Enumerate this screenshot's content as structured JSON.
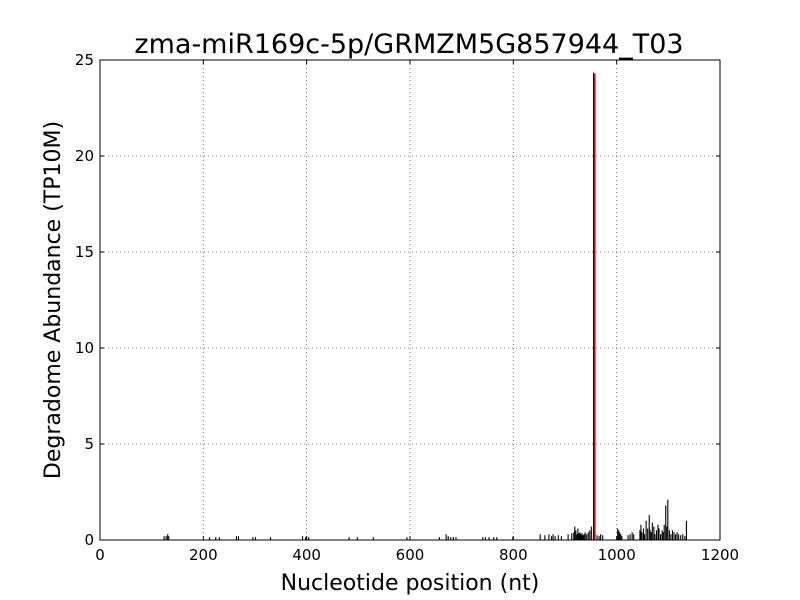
{
  "chart_data": {
    "type": "bar",
    "title": "zma-miR169c-5p/GRMZM5G857944_T03",
    "xlabel": "Nucleotide position (nt)",
    "ylabel": "Degradome Abundance (TP10M)",
    "xlim": [
      0,
      1200
    ],
    "ylim": [
      0,
      25
    ],
    "x_ticks": [
      0,
      200,
      400,
      600,
      800,
      1000,
      1200
    ],
    "y_ticks": [
      0,
      5,
      10,
      15,
      20,
      25
    ],
    "grid": true,
    "grid_style": "dotted",
    "colors": {
      "background_series": "#000000",
      "highlight": "#cc0000",
      "grid": "#555555"
    },
    "series": [
      {
        "role": "background",
        "x": [
          124,
          128,
          131,
          133,
          212,
          224,
          231,
          264,
          268,
          296,
          301,
          330,
          392,
          398,
          404,
          482,
          498,
          529,
          594,
          657,
          670,
          674,
          679,
          684,
          689,
          741,
          746,
          753,
          762,
          768,
          799,
          852,
          861,
          869,
          874,
          877,
          881,
          887,
          893,
          906,
          913,
          917,
          919,
          921,
          923,
          925,
          927,
          929,
          931,
          933,
          935,
          937,
          939,
          942,
          945,
          948,
          951,
          955,
          958,
          962,
          966,
          969,
          973,
          1002,
          1004,
          1006,
          1008,
          1010,
          1022,
          1026,
          1030,
          1033,
          1045,
          1047,
          1049,
          1052,
          1054,
          1057,
          1060,
          1063,
          1065,
          1067,
          1069,
          1072,
          1074,
          1077,
          1080,
          1082,
          1085,
          1088,
          1090,
          1092,
          1095,
          1097,
          1099,
          1102,
          1105,
          1108,
          1111,
          1114,
          1117,
          1120,
          1124,
          1128,
          1132,
          1135
        ],
        "y": [
          0.2,
          0.2,
          0.3,
          0.2,
          0.15,
          0.15,
          0.15,
          0.2,
          0.2,
          0.15,
          0.15,
          0.15,
          0.2,
          0.15,
          0.15,
          0.15,
          0.15,
          0.15,
          0.15,
          0.15,
          0.3,
          0.2,
          0.15,
          0.15,
          0.15,
          0.15,
          0.15,
          0.15,
          0.15,
          0.15,
          0.15,
          0.3,
          0.25,
          0.3,
          0.2,
          0.3,
          0.2,
          0.25,
          0.2,
          0.3,
          0.35,
          0.4,
          0.7,
          0.5,
          0.3,
          0.6,
          0.35,
          0.4,
          0.3,
          0.35,
          0.25,
          0.3,
          0.4,
          0.3,
          0.4,
          0.5,
          0.7,
          0.3,
          0.3,
          0.25,
          0.2,
          0.3,
          0.25,
          0.6,
          0.5,
          0.4,
          0.3,
          0.2,
          0.25,
          0.3,
          0.4,
          0.3,
          0.5,
          0.8,
          0.4,
          0.6,
          0.3,
          1.0,
          0.6,
          1.3,
          0.5,
          0.4,
          0.9,
          0.7,
          0.3,
          0.5,
          0.8,
          0.6,
          0.3,
          0.5,
          0.4,
          0.8,
          1.8,
          0.7,
          2.1,
          0.5,
          0.3,
          0.5,
          0.4,
          0.3,
          0.4,
          0.3,
          0.25,
          0.3,
          0.2,
          1.0
        ]
      },
      {
        "role": "highlight",
        "x": [
          957
        ],
        "y": [
          24.3
        ]
      }
    ]
  }
}
